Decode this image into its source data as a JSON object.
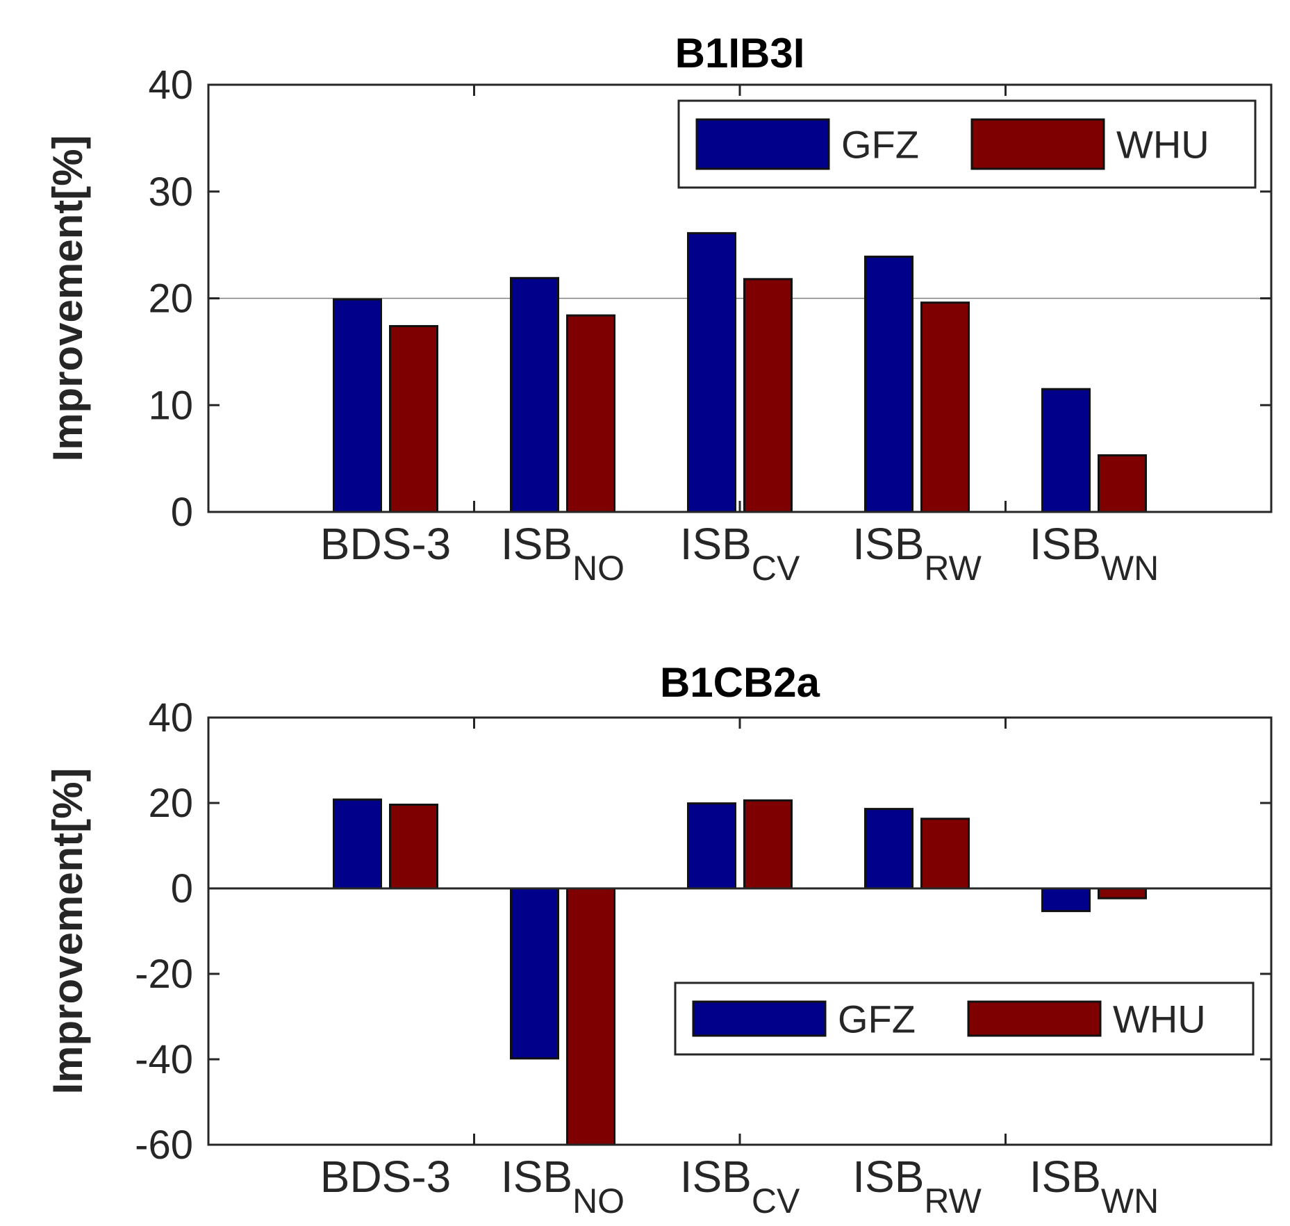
{
  "colors": {
    "GFZ": "#00008B",
    "WHU": "#7F0000"
  },
  "chart_data": [
    {
      "type": "bar",
      "title": "B1IB3I",
      "xlabel": "",
      "ylabel": "Improvement[%]",
      "ylim": [
        0,
        40
      ],
      "yticks": [
        "40",
        "30",
        "20",
        "10",
        "0"
      ],
      "ytick_values": [
        40,
        30,
        20,
        10,
        0
      ],
      "categories": [
        {
          "main": "BDS-3",
          "sub": ""
        },
        {
          "main": "ISB",
          "sub": "NO"
        },
        {
          "main": "ISB",
          "sub": "CV"
        },
        {
          "main": "ISB",
          "sub": "RW"
        },
        {
          "main": "ISB",
          "sub": "WN"
        }
      ],
      "series": [
        {
          "name": "GFZ",
          "values": [
            19.9,
            21.9,
            26.1,
            23.9,
            11.5
          ]
        },
        {
          "name": "WHU",
          "values": [
            17.4,
            18.4,
            21.8,
            19.6,
            5.3
          ]
        }
      ],
      "reference_line": 20,
      "legend": {
        "position": "top-right",
        "labels": [
          "GFZ",
          "WHU"
        ]
      }
    },
    {
      "type": "bar",
      "title": "B1CB2a",
      "xlabel": "",
      "ylabel": "Improvement[%]",
      "ylim": [
        -60,
        40
      ],
      "yticks": [
        "40",
        "20",
        "0",
        "-20",
        "-40",
        "-60"
      ],
      "ytick_values": [
        40,
        20,
        0,
        -20,
        -40,
        -60
      ],
      "categories": [
        {
          "main": "BDS-3",
          "sub": ""
        },
        {
          "main": "ISB",
          "sub": "NO"
        },
        {
          "main": "ISB",
          "sub": "CV"
        },
        {
          "main": "ISB",
          "sub": "RW"
        },
        {
          "main": "ISB",
          "sub": "WN"
        }
      ],
      "series": [
        {
          "name": "GFZ",
          "values": [
            20.8,
            -39.8,
            19.9,
            18.6,
            -5.3
          ]
        },
        {
          "name": "WHU",
          "values": [
            19.6,
            -60,
            20.6,
            16.3,
            -2.3
          ]
        }
      ],
      "legend": {
        "position": "bottom-right",
        "labels": [
          "GFZ",
          "WHU"
        ]
      }
    }
  ]
}
